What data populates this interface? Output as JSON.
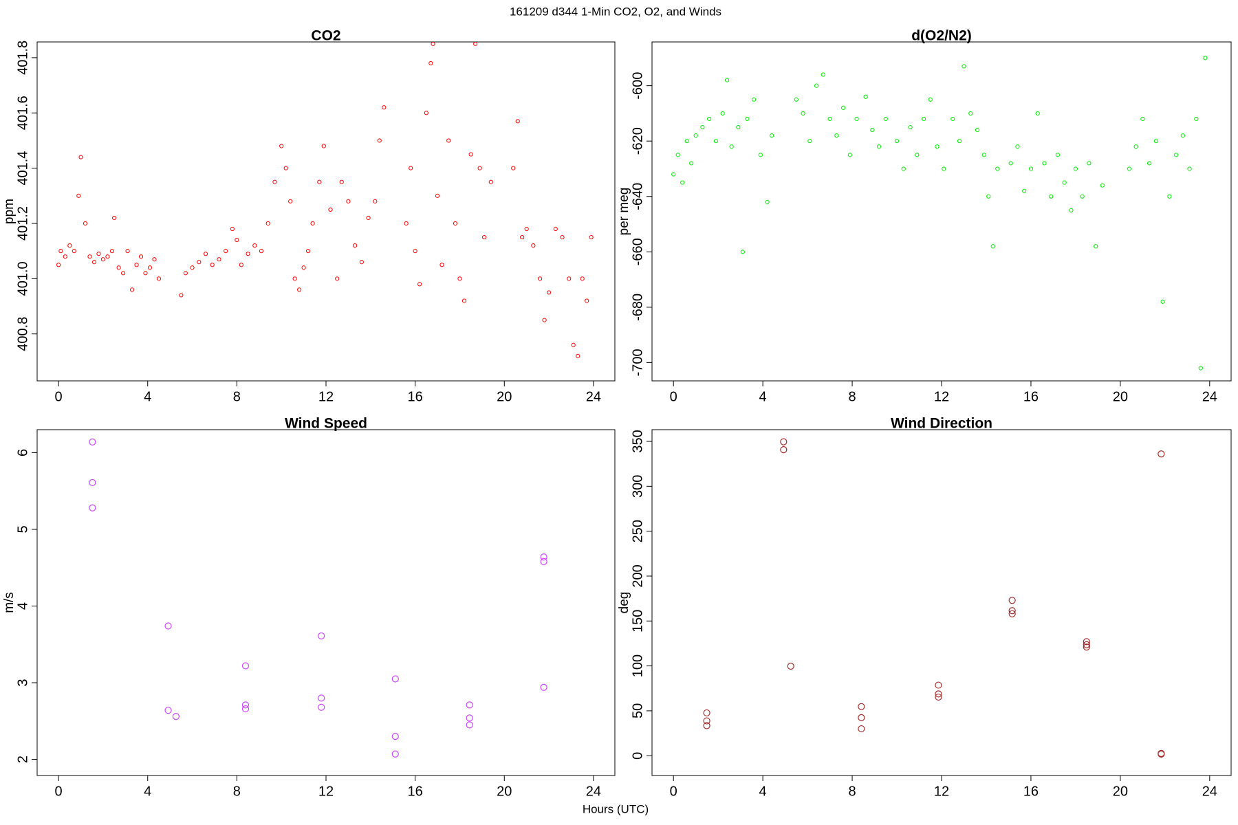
{
  "title": "161209   d344   1-Min CO2, O2, and Winds",
  "xlabel": "Hours (UTC)",
  "chart_data": [
    {
      "type": "scatter",
      "title": "CO2",
      "ylabel": "ppm",
      "color": "#ff0000",
      "xlim": [
        -0.96,
        24.96
      ],
      "ylim": [
        400.63,
        401.857
      ],
      "xticks": [
        0,
        4,
        8,
        12,
        16,
        20,
        24
      ],
      "yticks": [
        400.8,
        {
          "value": 401,
          "label": "401.0"
        },
        401.2,
        401.4,
        401.6,
        401.8
      ],
      "x": [
        0.0,
        0.1,
        0.3,
        0.5,
        0.7,
        0.9,
        1.0,
        1.2,
        1.4,
        1.6,
        1.8,
        2.0,
        2.2,
        2.4,
        2.5,
        2.7,
        2.9,
        3.1,
        3.3,
        3.5,
        3.7,
        3.9,
        4.1,
        4.3,
        4.5,
        5.5,
        5.7,
        6.0,
        6.3,
        6.6,
        6.9,
        7.2,
        7.5,
        7.8,
        8.0,
        8.2,
        8.5,
        8.8,
        9.1,
        9.4,
        9.7,
        10.0,
        10.2,
        10.4,
        10.6,
        10.8,
        11.0,
        11.2,
        11.4,
        11.7,
        11.9,
        12.2,
        12.5,
        12.7,
        13.0,
        13.3,
        13.6,
        13.9,
        14.2,
        14.4,
        14.6,
        15.6,
        15.8,
        16.0,
        16.2,
        16.5,
        16.7,
        16.8,
        17.0,
        17.2,
        17.5,
        17.8,
        18.0,
        18.2,
        18.5,
        18.7,
        18.9,
        19.1,
        19.4,
        20.4,
        20.6,
        20.8,
        21.0,
        21.3,
        21.6,
        21.8,
        22.0,
        22.3,
        22.6,
        22.9,
        23.1,
        23.3,
        23.5,
        23.7,
        23.9
      ],
      "values": [
        401.05,
        401.1,
        401.08,
        401.12,
        401.1,
        401.3,
        401.44,
        401.2,
        401.08,
        401.06,
        401.09,
        401.07,
        401.08,
        401.1,
        401.22,
        401.04,
        401.02,
        401.1,
        400.96,
        401.05,
        401.08,
        401.02,
        401.04,
        401.07,
        401.0,
        400.94,
        401.02,
        401.04,
        401.06,
        401.09,
        401.05,
        401.07,
        401.1,
        401.18,
        401.14,
        401.05,
        401.09,
        401.12,
        401.1,
        401.2,
        401.35,
        401.48,
        401.4,
        401.28,
        401.0,
        400.96,
        401.04,
        401.1,
        401.2,
        401.35,
        401.48,
        401.25,
        401.0,
        401.35,
        401.28,
        401.12,
        401.06,
        401.22,
        401.28,
        401.5,
        401.62,
        401.2,
        401.4,
        401.1,
        400.98,
        401.6,
        401.78,
        401.85,
        401.3,
        401.05,
        401.5,
        401.2,
        401.0,
        400.92,
        401.45,
        401.85,
        401.4,
        401.15,
        401.35,
        401.4,
        401.57,
        401.15,
        401.18,
        401.12,
        401.0,
        400.85,
        400.95,
        401.18,
        401.15,
        401.0,
        400.76,
        400.72,
        401.0,
        400.92,
        401.15
      ]
    },
    {
      "type": "scatter",
      "title": "d(O2/N2)",
      "ylabel": "per meg",
      "color": "#00ee00",
      "xlim": [
        -0.96,
        24.96
      ],
      "ylim": [
        -706.6,
        -584.2
      ],
      "xticks": [
        0,
        4,
        8,
        12,
        16,
        20,
        24
      ],
      "yticks": [
        -700,
        -680,
        -660,
        -640,
        -620,
        -600
      ],
      "x": [
        0.0,
        0.2,
        0.4,
        0.6,
        0.8,
        1.0,
        1.3,
        1.6,
        1.9,
        2.2,
        2.4,
        2.6,
        2.9,
        3.1,
        3.3,
        3.6,
        3.9,
        4.2,
        4.4,
        5.5,
        5.8,
        6.1,
        6.4,
        6.7,
        7.0,
        7.3,
        7.6,
        7.9,
        8.2,
        8.6,
        8.9,
        9.2,
        9.5,
        10.0,
        10.3,
        10.6,
        10.9,
        11.2,
        11.5,
        11.8,
        12.1,
        12.5,
        12.8,
        13.0,
        13.3,
        13.6,
        13.9,
        14.1,
        14.3,
        14.5,
        15.1,
        15.4,
        15.7,
        16.0,
        16.3,
        16.6,
        16.9,
        17.2,
        17.5,
        17.8,
        18.0,
        18.3,
        18.6,
        18.9,
        19.2,
        20.4,
        20.7,
        21.0,
        21.3,
        21.6,
        21.9,
        22.2,
        22.5,
        22.8,
        23.1,
        23.4,
        23.6,
        23.8
      ],
      "values": [
        -632,
        -625,
        -635,
        -620,
        -628,
        -618,
        -615,
        -612,
        -620,
        -610,
        -598,
        -622,
        -615,
        -660,
        -612,
        -605,
        -625,
        -642,
        -618,
        -605,
        -610,
        -620,
        -600,
        -596,
        -612,
        -618,
        -608,
        -625,
        -612,
        -604,
        -616,
        -622,
        -612,
        -620,
        -630,
        -615,
        -625,
        -612,
        -605,
        -622,
        -630,
        -612,
        -620,
        -593,
        -610,
        -616,
        -625,
        -640,
        -658,
        -630,
        -628,
        -622,
        -638,
        -630,
        -610,
        -628,
        -640,
        -625,
        -635,
        -645,
        -630,
        -640,
        -628,
        -658,
        -636,
        -630,
        -622,
        -612,
        -628,
        -620,
        -678,
        -640,
        -625,
        -618,
        -630,
        -612,
        -702,
        -590
      ]
    },
    {
      "type": "scatter",
      "title": "Wind Speed",
      "ylabel": "m/s",
      "color": "#cc44ff",
      "xlim": [
        -0.96,
        24.96
      ],
      "ylim": [
        1.79,
        6.3
      ],
      "xticks": [
        0,
        4,
        8,
        12,
        16,
        20,
        24
      ],
      "yticks": [
        2,
        3,
        4,
        5,
        6
      ],
      "x": [
        1.52,
        1.52,
        1.52,
        4.92,
        4.92,
        5.27,
        8.39,
        8.39,
        8.39,
        11.79,
        11.79,
        11.79,
        15.11,
        15.11,
        15.11,
        18.44,
        18.44,
        18.44,
        21.77,
        21.77,
        21.77
      ],
      "values": [
        6.14,
        5.61,
        5.28,
        3.74,
        2.64,
        2.56,
        3.22,
        2.71,
        2.66,
        3.61,
        2.8,
        2.68,
        3.05,
        2.3,
        2.07,
        2.71,
        2.54,
        2.45,
        4.64,
        4.58,
        2.94
      ]
    },
    {
      "type": "scatter",
      "title": "Wind Direction",
      "ylabel": "deg",
      "color": "#a52a2a",
      "xlim": [
        -0.96,
        24.96
      ],
      "ylim": [
        -22,
        363
      ],
      "xticks": [
        0,
        4,
        8,
        12,
        16,
        20,
        24
      ],
      "yticks": [
        0,
        50,
        100,
        150,
        200,
        250,
        300,
        350
      ],
      "x": [
        1.49,
        1.49,
        1.49,
        4.93,
        4.93,
        5.25,
        8.41,
        8.41,
        8.41,
        11.86,
        11.86,
        11.86,
        15.16,
        15.16,
        15.16,
        18.49,
        18.49,
        18.49,
        21.83,
        21.83,
        21.83
      ],
      "values": [
        47.7,
        38.8,
        33.5,
        349.5,
        340.7,
        99.7,
        54.7,
        42.4,
        30,
        78.6,
        68.8,
        65.3,
        173,
        161.5,
        158,
        127,
        123.6,
        121,
        336,
        2.6,
        1.8
      ]
    }
  ]
}
